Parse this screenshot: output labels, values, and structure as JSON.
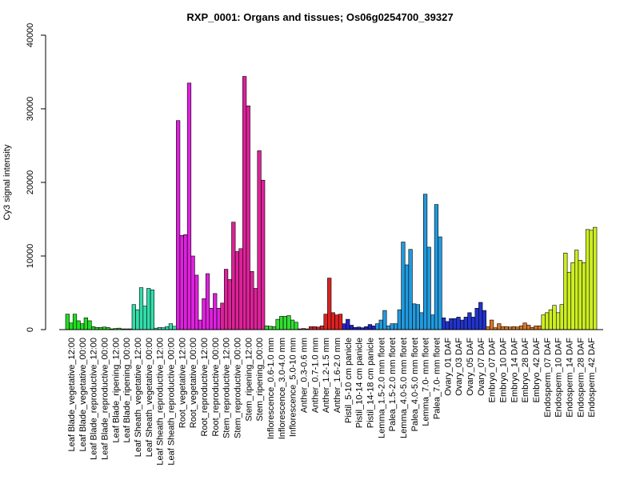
{
  "chart_data": {
    "type": "bar",
    "title": "RXP_0001: Organs and tissues; Os06g0254700_39327",
    "xlabel": "",
    "ylabel": "Cy3 signal intensity",
    "ylim": [
      0,
      40000
    ],
    "yticks": [
      0,
      10000,
      20000,
      30000,
      40000
    ],
    "ytick_labels": [
      "0",
      "10000",
      "20000",
      "30000",
      "40000"
    ],
    "grid": false,
    "legend": "none",
    "groups": [
      {
        "label": "Leaf Blade_vegetative_12:00",
        "color": "#22dd22",
        "values": [
          2100,
          900,
          2100
        ]
      },
      {
        "label": "Leaf Blade_vegetative_00:00",
        "color": "#22dd22",
        "values": [
          1200,
          800,
          1600
        ]
      },
      {
        "label": "Leaf Blade_reproductive_12:00",
        "color": "#22dd22",
        "values": [
          1200,
          400,
          300
        ]
      },
      {
        "label": "Leaf Blade_reproductive_00:00",
        "color": "#22dd22",
        "values": [
          300,
          350,
          300
        ]
      },
      {
        "label": "Leaf Blade_ripening_12:00",
        "color": "#22dd22",
        "values": [
          100,
          150,
          200
        ]
      },
      {
        "label": "Leaf Blade_ripening_00:00",
        "color": "#22dd22",
        "values": [
          100,
          100,
          100
        ]
      },
      {
        "label": "Leaf Sheath_vegetative_12:00",
        "color": "#33ddaa",
        "values": [
          3400,
          2700,
          5700
        ]
      },
      {
        "label": "Leaf Sheath_vegetative_00:00",
        "color": "#33ddaa",
        "values": [
          3200,
          5600,
          5400
        ]
      },
      {
        "label": "Leaf Sheath_reproductive_12:00",
        "color": "#33ddaa",
        "values": [
          200,
          300,
          250
        ]
      },
      {
        "label": "Leaf Sheath_reproductive_00:00",
        "color": "#33ddaa",
        "values": [
          400,
          800,
          450
        ]
      },
      {
        "label": "Root_vegetative_12:00",
        "color": "#dd22dd",
        "values": [
          28400,
          12800,
          12900
        ]
      },
      {
        "label": "Root_vegetative_00:00",
        "color": "#dd22dd",
        "values": [
          33500,
          10000,
          7400
        ]
      },
      {
        "label": "Root_reproductive_12:00",
        "color": "#dd22dd",
        "values": [
          1300,
          4200,
          7600
        ]
      },
      {
        "label": "Root_reproductive_00:00",
        "color": "#dd22dd",
        "values": [
          2900,
          4900,
          2900
        ]
      },
      {
        "label": "Stem_reproductive_12:00",
        "color": "#dd2299",
        "values": [
          3600,
          8200,
          6800
        ]
      },
      {
        "label": "Stem_reproductive_00:00",
        "color": "#dd2299",
        "values": [
          14600,
          10600,
          11000
        ]
      },
      {
        "label": "Stem_ripening_12:00",
        "color": "#dd2299",
        "values": [
          34400,
          30400,
          7900
        ]
      },
      {
        "label": "Stem_ripening_00:00",
        "color": "#dd2299",
        "values": [
          5600,
          24300,
          20300
        ]
      },
      {
        "label": "Inflorescence_0.6-1.0 mm",
        "color": "#33dd33",
        "values": [
          500,
          450,
          400
        ]
      },
      {
        "label": "Inflorescence_3.0-4.0 mm",
        "color": "#33dd33",
        "values": [
          1400,
          1800,
          1800
        ]
      },
      {
        "label": "Inflorescence_5.0-10 mm",
        "color": "#33dd33",
        "values": [
          1900,
          1300,
          1000
        ]
      },
      {
        "label": "Anther_0.3-0.6 mm",
        "color": "#dd2222",
        "values": [
          100,
          150,
          100
        ]
      },
      {
        "label": "Anther_0.7-1.0 mm",
        "color": "#dd2222",
        "values": [
          400,
          400,
          350
        ]
      },
      {
        "label": "Anther_1.2-1.5 mm",
        "color": "#dd2222",
        "values": [
          500,
          2100,
          7000
        ]
      },
      {
        "label": "Anther_1.6-2.0 mm",
        "color": "#dd2222",
        "values": [
          2300,
          2000,
          2100
        ]
      },
      {
        "label": "Pistil_5-10 cm panicle",
        "color": "#2222cc",
        "values": [
          800,
          1400,
          600
        ]
      },
      {
        "label": "Pistil_10-14 cm panicle",
        "color": "#2222cc",
        "values": [
          300,
          350,
          250
        ]
      },
      {
        "label": "Pistil_14-18 cm panicle",
        "color": "#2222cc",
        "values": [
          400,
          700,
          500
        ]
      },
      {
        "label": "Lemma_1.5-2.0 mm floret",
        "color": "#2299dd",
        "values": [
          800,
          1300,
          2600
        ]
      },
      {
        "label": "Palea_1.5-2.0 mm floret",
        "color": "#2299dd",
        "values": [
          500,
          800,
          800
        ]
      },
      {
        "label": "Lemma_4.0-5.0 mm floret",
        "color": "#2299dd",
        "values": [
          2700,
          11900,
          8800
        ]
      },
      {
        "label": "Palea_4.0-5.0 mm floret",
        "color": "#2299dd",
        "values": [
          10900,
          3500,
          3400
        ]
      },
      {
        "label": "Lemma_7.0- mm floret",
        "color": "#2299dd",
        "values": [
          2300,
          18400,
          11200
        ]
      },
      {
        "label": "Palea_7.0- mm floret",
        "color": "#2299dd",
        "values": [
          2000,
          17000,
          12600
        ]
      },
      {
        "label": "Ovary_01 DAF",
        "color": "#2233cc",
        "values": [
          1600,
          1100,
          1500
        ]
      },
      {
        "label": "Ovary_03 DAF",
        "color": "#2233cc",
        "values": [
          1500,
          1700,
          1300
        ]
      },
      {
        "label": "Ovary_05 DAF",
        "color": "#2233cc",
        "values": [
          1700,
          2300,
          1700
        ]
      },
      {
        "label": "Ovary_07 DAF",
        "color": "#2233cc",
        "values": [
          2900,
          3700,
          2600
        ]
      },
      {
        "label": "Embryo_07 DAF",
        "color": "#dd7722",
        "values": [
          400,
          1300,
          250
        ]
      },
      {
        "label": "Embryo_10 DAF",
        "color": "#dd7722",
        "values": [
          800,
          400,
          400
        ]
      },
      {
        "label": "Embryo_14 DAF",
        "color": "#dd7722",
        "values": [
          350,
          400,
          350
        ]
      },
      {
        "label": "Embryo_28 DAF",
        "color": "#dd7722",
        "values": [
          500,
          900,
          600
        ]
      },
      {
        "label": "Embryo_42 DAF",
        "color": "#dd7722",
        "values": [
          300,
          500,
          500
        ]
      },
      {
        "label": "Endosperm_07 DAF",
        "color": "#ccee22",
        "values": [
          2000,
          2300,
          2700
        ]
      },
      {
        "label": "Endosperm_10 DAF",
        "color": "#ccee22",
        "values": [
          3300,
          2300,
          3400
        ]
      },
      {
        "label": "Endosperm_14 DAF",
        "color": "#ccee22",
        "values": [
          10400,
          7800,
          9100
        ]
      },
      {
        "label": "Endosperm_28 DAF",
        "color": "#ccee22",
        "values": [
          10800,
          9400,
          9100
        ]
      },
      {
        "label": "Endosperm_42 DAF",
        "color": "#ccee22",
        "values": [
          13600,
          13500,
          13900
        ]
      }
    ]
  }
}
